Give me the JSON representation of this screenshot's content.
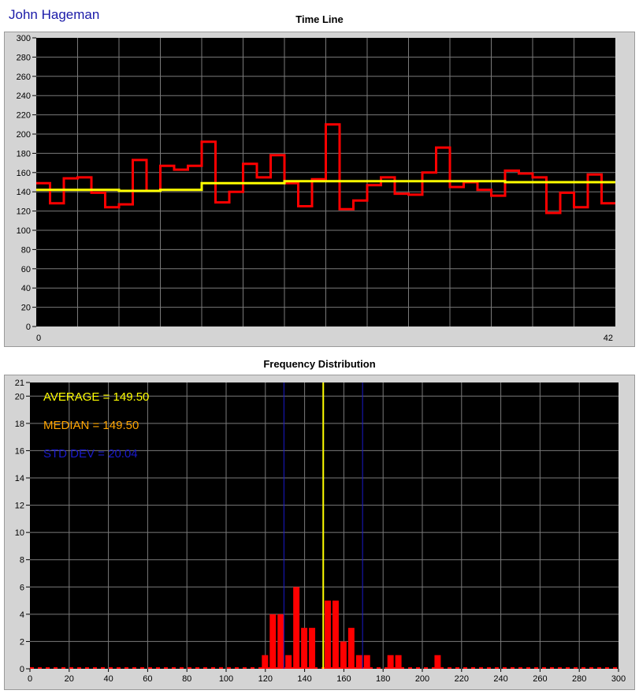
{
  "header": {
    "user_name": "John Hageman"
  },
  "chart_data": [
    {
      "type": "line",
      "title": "Time Line",
      "xlabel": "",
      "ylabel": "",
      "xlim": [
        0,
        42
      ],
      "ylim": [
        0,
        300
      ],
      "x_ticks": [
        0,
        42
      ],
      "y_ticks": [
        0,
        20,
        40,
        60,
        80,
        100,
        120,
        140,
        160,
        180,
        200,
        220,
        240,
        260,
        280,
        300
      ],
      "grid": true,
      "background": "#000000",
      "series": [
        {
          "style": "step",
          "color": "#ff0000",
          "values": [
            149,
            128,
            154,
            155,
            139,
            124,
            127,
            173,
            141,
            167,
            163,
            167,
            192,
            129,
            140,
            169,
            155,
            178,
            149,
            125,
            153,
            210,
            122,
            131,
            147,
            155,
            138,
            137,
            160,
            186,
            145,
            150,
            142,
            136,
            162,
            159,
            155,
            118,
            139,
            124,
            158,
            128
          ]
        },
        {
          "style": "step",
          "color": "#ffff00",
          "values": [
            142,
            142,
            142,
            142,
            142,
            142,
            141,
            141,
            141,
            142,
            142,
            142,
            149,
            149,
            149,
            149,
            149,
            149,
            151,
            151,
            151,
            151,
            151,
            151,
            151,
            151,
            151,
            151,
            151,
            151,
            151,
            151,
            151,
            151,
            150,
            150,
            150,
            150,
            150,
            150,
            150,
            150
          ]
        }
      ]
    },
    {
      "type": "bar",
      "title": "Frequency Distribution",
      "xlabel": "",
      "ylabel": "",
      "xlim": [
        0,
        300
      ],
      "ylim": [
        0,
        21
      ],
      "x_ticks": [
        0,
        20,
        40,
        60,
        80,
        100,
        120,
        140,
        160,
        180,
        200,
        220,
        240,
        260,
        280,
        300
      ],
      "y_ticks": [
        0,
        2,
        4,
        6,
        8,
        10,
        12,
        14,
        16,
        18,
        20,
        21
      ],
      "grid": true,
      "background": "#000000",
      "bar_color": "#ff0000",
      "bin_width": 4,
      "bins": [
        {
          "x": 118,
          "count": 1
        },
        {
          "x": 122,
          "count": 4
        },
        {
          "x": 126,
          "count": 4
        },
        {
          "x": 130,
          "count": 1
        },
        {
          "x": 134,
          "count": 6
        },
        {
          "x": 138,
          "count": 3
        },
        {
          "x": 142,
          "count": 3
        },
        {
          "x": 150,
          "count": 5
        },
        {
          "x": 154,
          "count": 5
        },
        {
          "x": 158,
          "count": 2
        },
        {
          "x": 162,
          "count": 3
        },
        {
          "x": 166,
          "count": 1
        },
        {
          "x": 170,
          "count": 1
        },
        {
          "x": 182,
          "count": 1
        },
        {
          "x": 186,
          "count": 1
        },
        {
          "x": 206,
          "count": 1
        }
      ],
      "reference_lines": [
        {
          "x": 149.5,
          "color": "#ffff00"
        },
        {
          "x": 129.46,
          "color": "#1a1acc"
        },
        {
          "x": 169.54,
          "color": "#1a1acc"
        }
      ],
      "annotations": [
        {
          "text": "AVERAGE = 149.50",
          "color": "#ffff00"
        },
        {
          "text": "MEDIAN = 149.50",
          "color": "#ffa500"
        },
        {
          "text": "STD DEV = 20.04",
          "color": "#1a1acc"
        }
      ]
    }
  ]
}
